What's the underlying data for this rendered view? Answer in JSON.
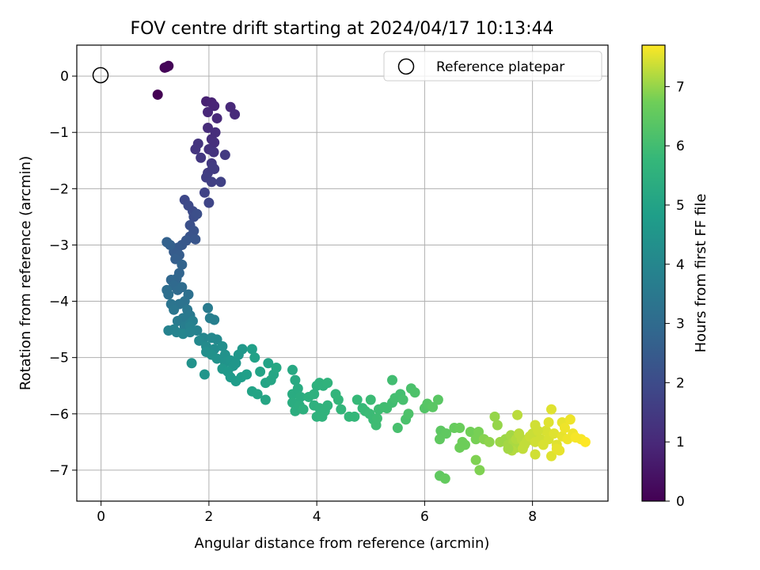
{
  "chart_data": {
    "type": "scatter",
    "title": "FOV centre drift starting at 2024/04/17 10:13:44",
    "xlabel": "Angular distance from reference (arcmin)",
    "ylabel": "Rotation from reference (arcmin)",
    "xlim": [
      -0.45,
      9.4
    ],
    "ylim": [
      -7.55,
      0.55
    ],
    "xticks": [
      0,
      2,
      4,
      6,
      8
    ],
    "yticks": [
      0,
      -1,
      -2,
      -3,
      -4,
      -5,
      -6,
      -7
    ],
    "xtick_labels": [
      "0",
      "2",
      "4",
      "6",
      "8"
    ],
    "ytick_labels": [
      "0",
      "−1",
      "−2",
      "−3",
      "−4",
      "−5",
      "−6",
      "−7"
    ],
    "grid": true,
    "legend": {
      "placement": "top-right",
      "entries": [
        "Reference platepar"
      ]
    },
    "reference_point": {
      "x": 0,
      "y": 0
    },
    "colorbar": {
      "label": "Hours from first FF file",
      "colormap": "viridis",
      "range": [
        0,
        7.7
      ],
      "ticks": [
        0,
        1,
        2,
        3,
        4,
        5,
        6,
        7
      ],
      "tick_labels": [
        "0",
        "1",
        "2",
        "3",
        "4",
        "5",
        "6",
        "7"
      ]
    },
    "points_note": "x, y in arcmin; h = hours from first FF file (colour)",
    "points": [
      [
        1.05,
        -0.33,
        0.0
      ],
      [
        1.18,
        0.15,
        0.05
      ],
      [
        1.25,
        0.18,
        0.08
      ],
      [
        1.21,
        0.16,
        0.1
      ],
      [
        1.95,
        -0.45,
        0.8
      ],
      [
        2.05,
        -0.47,
        0.85
      ],
      [
        2.1,
        -0.53,
        0.9
      ],
      [
        1.98,
        -0.64,
        0.95
      ],
      [
        2.15,
        -0.75,
        1.0
      ],
      [
        2.4,
        -0.55,
        1.0
      ],
      [
        2.48,
        -0.68,
        1.05
      ],
      [
        1.98,
        -0.92,
        1.1
      ],
      [
        2.05,
        -1.12,
        1.15
      ],
      [
        2.1,
        -1.18,
        1.2
      ],
      [
        2.0,
        -1.3,
        1.25
      ],
      [
        2.09,
        -1.35,
        1.3
      ],
      [
        1.8,
        -1.2,
        1.3
      ],
      [
        1.75,
        -1.3,
        1.35
      ],
      [
        1.85,
        -1.45,
        1.4
      ],
      [
        2.05,
        -1.55,
        1.45
      ],
      [
        2.1,
        -1.65,
        1.5
      ],
      [
        1.98,
        -1.72,
        1.55
      ],
      [
        1.95,
        -1.8,
        1.6
      ],
      [
        2.05,
        -1.88,
        1.65
      ],
      [
        2.22,
        -1.88,
        1.7
      ],
      [
        1.92,
        -2.07,
        1.75
      ],
      [
        2.0,
        -2.25,
        1.8
      ],
      [
        2.3,
        -1.4,
        1.5
      ],
      [
        2.12,
        -1.0,
        1.15
      ],
      [
        2.07,
        -1.62,
        1.55
      ],
      [
        1.55,
        -2.2,
        1.9
      ],
      [
        1.62,
        -2.3,
        1.95
      ],
      [
        1.7,
        -2.4,
        2.0
      ],
      [
        1.72,
        -2.5,
        2.05
      ],
      [
        1.78,
        -2.45,
        2.1
      ],
      [
        1.65,
        -2.65,
        2.15
      ],
      [
        1.72,
        -2.75,
        2.2
      ],
      [
        1.65,
        -2.85,
        2.25
      ],
      [
        1.75,
        -2.9,
        2.3
      ],
      [
        1.58,
        -2.92,
        2.35
      ],
      [
        1.5,
        -3.0,
        2.4
      ],
      [
        1.42,
        -3.05,
        2.45
      ],
      [
        1.35,
        -3.12,
        2.5
      ],
      [
        1.45,
        -3.18,
        2.55
      ],
      [
        1.38,
        -3.25,
        2.6
      ],
      [
        1.28,
        -3.0,
        2.65
      ],
      [
        1.22,
        -2.95,
        2.7
      ],
      [
        1.5,
        -3.35,
        2.75
      ],
      [
        1.45,
        -3.5,
        2.8
      ],
      [
        1.4,
        -3.6,
        2.85
      ],
      [
        1.3,
        -3.62,
        2.9
      ],
      [
        1.35,
        -3.72,
        2.95
      ],
      [
        1.42,
        -3.8,
        3.0
      ],
      [
        1.5,
        -3.75,
        3.05
      ],
      [
        1.22,
        -3.8,
        3.1
      ],
      [
        1.25,
        -3.88,
        3.15
      ],
      [
        1.62,
        -3.88,
        3.2
      ],
      [
        1.55,
        -4.0,
        3.25
      ],
      [
        1.45,
        -4.05,
        3.3
      ],
      [
        1.3,
        -4.05,
        3.35
      ],
      [
        1.35,
        -4.15,
        3.4
      ],
      [
        1.6,
        -4.15,
        3.45
      ],
      [
        1.65,
        -4.25,
        3.5
      ],
      [
        1.52,
        -4.3,
        3.55
      ],
      [
        1.42,
        -4.35,
        3.6
      ],
      [
        1.55,
        -4.45,
        3.65
      ],
      [
        1.65,
        -4.4,
        3.7
      ],
      [
        1.7,
        -4.35,
        3.75
      ],
      [
        1.35,
        -4.5,
        3.8
      ],
      [
        1.25,
        -4.52,
        3.85
      ],
      [
        1.4,
        -4.55,
        3.9
      ],
      [
        1.52,
        -4.58,
        3.95
      ],
      [
        1.98,
        -4.12,
        3.6
      ],
      [
        2.02,
        -4.3,
        3.7
      ],
      [
        2.1,
        -4.33,
        3.75
      ],
      [
        1.65,
        -4.45,
        3.8
      ],
      [
        1.78,
        -4.52,
        3.85
      ],
      [
        1.65,
        -4.55,
        3.9
      ],
      [
        1.9,
        -4.65,
        4.0
      ],
      [
        2.05,
        -4.65,
        4.05
      ],
      [
        2.15,
        -4.68,
        4.1
      ],
      [
        1.82,
        -4.7,
        4.1
      ],
      [
        1.95,
        -4.8,
        4.15
      ],
      [
        2.1,
        -4.85,
        4.2
      ],
      [
        2.25,
        -4.8,
        4.25
      ],
      [
        1.95,
        -4.9,
        4.3
      ],
      [
        2.05,
        -4.95,
        4.35
      ],
      [
        2.3,
        -4.95,
        4.4
      ],
      [
        2.15,
        -5.02,
        4.4
      ],
      [
        2.3,
        -5.08,
        4.45
      ],
      [
        2.4,
        -5.05,
        4.5
      ],
      [
        2.45,
        -5.15,
        4.55
      ],
      [
        2.25,
        -5.2,
        4.6
      ],
      [
        2.35,
        -5.25,
        4.65
      ],
      [
        2.4,
        -5.35,
        4.7
      ],
      [
        2.5,
        -5.42,
        4.75
      ],
      [
        2.6,
        -5.35,
        4.8
      ],
      [
        2.55,
        -4.95,
        4.55
      ],
      [
        2.62,
        -4.85,
        4.6
      ],
      [
        2.7,
        -5.3,
        4.85
      ],
      [
        1.68,
        -5.1,
        4.4
      ],
      [
        1.92,
        -5.3,
        4.5
      ],
      [
        2.5,
        -5.1,
        4.55
      ],
      [
        2.8,
        -5.6,
        5.0
      ],
      [
        2.9,
        -5.65,
        5.05
      ],
      [
        3.05,
        -5.75,
        5.1
      ],
      [
        2.95,
        -5.25,
        5.0
      ],
      [
        3.1,
        -5.1,
        5.0
      ],
      [
        2.8,
        -4.85,
        4.9
      ],
      [
        2.85,
        -5.0,
        4.95
      ],
      [
        3.05,
        -5.45,
        5.05
      ],
      [
        3.15,
        -5.4,
        5.1
      ],
      [
        3.2,
        -5.3,
        5.1
      ],
      [
        3.25,
        -5.18,
        5.15
      ],
      [
        3.55,
        -5.22,
        5.2
      ],
      [
        3.6,
        -5.4,
        5.25
      ],
      [
        3.55,
        -5.65,
        5.3
      ],
      [
        3.65,
        -5.55,
        5.3
      ],
      [
        3.7,
        -5.7,
        5.35
      ],
      [
        3.55,
        -5.8,
        5.35
      ],
      [
        3.6,
        -5.95,
        5.4
      ],
      [
        3.68,
        -5.85,
        5.4
      ],
      [
        3.75,
        -5.92,
        5.45
      ],
      [
        3.85,
        -5.7,
        5.45
      ],
      [
        3.95,
        -5.65,
        5.5
      ],
      [
        4.0,
        -5.5,
        5.5
      ],
      [
        4.05,
        -5.45,
        5.55
      ],
      [
        4.12,
        -5.5,
        5.55
      ],
      [
        4.2,
        -5.45,
        5.6
      ],
      [
        3.95,
        -5.85,
        5.5
      ],
      [
        4.05,
        -5.9,
        5.55
      ],
      [
        4.15,
        -5.95,
        5.6
      ],
      [
        4.0,
        -6.05,
        5.55
      ],
      [
        4.1,
        -6.05,
        5.6
      ],
      [
        4.2,
        -5.85,
        5.6
      ],
      [
        4.35,
        -5.65,
        5.65
      ],
      [
        4.4,
        -5.75,
        5.7
      ],
      [
        4.45,
        -5.92,
        5.7
      ],
      [
        4.6,
        -6.05,
        5.75
      ],
      [
        4.7,
        -6.05,
        5.75
      ],
      [
        4.75,
        -5.75,
        5.8
      ],
      [
        4.85,
        -5.9,
        5.8
      ],
      [
        4.9,
        -5.95,
        5.85
      ],
      [
        5.0,
        -5.75,
        5.9
      ],
      [
        5.05,
        -6.1,
        5.9
      ],
      [
        5.1,
        -6.2,
        5.95
      ],
      [
        5.15,
        -5.92,
        5.95
      ],
      [
        5.25,
        -5.88,
        6.0
      ],
      [
        5.4,
        -5.8,
        6.0
      ],
      [
        5.45,
        -5.72,
        6.05
      ],
      [
        5.4,
        -5.4,
        6.0
      ],
      [
        5.55,
        -5.65,
        6.05
      ],
      [
        5.6,
        -5.75,
        6.1
      ],
      [
        5.5,
        -6.25,
        6.1
      ],
      [
        5.65,
        -6.1,
        6.15
      ],
      [
        5.75,
        -5.55,
        6.15
      ],
      [
        5.82,
        -5.62,
        6.2
      ],
      [
        5.7,
        -6.0,
        6.2
      ],
      [
        4.98,
        -6.0,
        5.9
      ],
      [
        5.12,
        -6.08,
        5.95
      ],
      [
        5.3,
        -5.9,
        6.0
      ],
      [
        6.0,
        -5.9,
        6.3
      ],
      [
        6.05,
        -5.82,
        6.35
      ],
      [
        6.15,
        -5.88,
        6.4
      ],
      [
        6.25,
        -5.75,
        6.4
      ],
      [
        6.3,
        -6.3,
        6.45
      ],
      [
        6.4,
        -6.35,
        6.5
      ],
      [
        6.28,
        -6.45,
        6.5
      ],
      [
        6.28,
        -7.1,
        6.5
      ],
      [
        6.38,
        -7.15,
        6.55
      ],
      [
        6.55,
        -6.25,
        6.6
      ],
      [
        6.65,
        -6.25,
        6.65
      ],
      [
        6.7,
        -6.5,
        6.7
      ],
      [
        6.75,
        -6.55,
        6.7
      ],
      [
        6.65,
        -6.6,
        6.7
      ],
      [
        6.85,
        -6.32,
        6.75
      ],
      [
        6.95,
        -6.45,
        6.8
      ],
      [
        7.0,
        -6.32,
        6.8
      ],
      [
        6.95,
        -6.82,
        6.85
      ],
      [
        7.02,
        -7.0,
        6.85
      ],
      [
        7.1,
        -6.45,
        6.9
      ],
      [
        7.2,
        -6.5,
        6.95
      ],
      [
        7.3,
        -6.05,
        7.0
      ],
      [
        7.35,
        -6.2,
        7.0
      ],
      [
        7.4,
        -6.5,
        7.05
      ],
      [
        7.5,
        -6.45,
        7.05
      ],
      [
        7.55,
        -6.55,
        7.1
      ],
      [
        7.6,
        -6.38,
        7.1
      ],
      [
        7.65,
        -6.5,
        7.15
      ],
      [
        7.7,
        -6.6,
        7.15
      ],
      [
        7.62,
        -6.65,
        7.2
      ],
      [
        7.7,
        -6.45,
        7.2
      ],
      [
        7.75,
        -6.35,
        7.25
      ],
      [
        7.8,
        -6.45,
        7.25
      ],
      [
        7.72,
        -6.02,
        7.25
      ],
      [
        7.85,
        -6.55,
        7.3
      ],
      [
        7.9,
        -6.48,
        7.3
      ],
      [
        7.95,
        -6.4,
        7.35
      ],
      [
        8.0,
        -6.35,
        7.35
      ],
      [
        8.05,
        -6.5,
        7.4
      ],
      [
        8.05,
        -6.72,
        7.4
      ],
      [
        8.15,
        -6.45,
        7.4
      ],
      [
        8.2,
        -6.55,
        7.45
      ],
      [
        8.25,
        -6.3,
        7.45
      ],
      [
        8.3,
        -6.45,
        7.45
      ],
      [
        8.35,
        -6.75,
        7.5
      ],
      [
        8.4,
        -6.35,
        7.5
      ],
      [
        8.35,
        -5.92,
        7.5
      ],
      [
        8.45,
        -6.55,
        7.5
      ],
      [
        8.5,
        -6.65,
        7.55
      ],
      [
        8.55,
        -6.4,
        7.55
      ],
      [
        8.55,
        -6.15,
        7.55
      ],
      [
        8.6,
        -6.25,
        7.6
      ],
      [
        8.65,
        -6.45,
        7.6
      ],
      [
        8.7,
        -6.1,
        7.6
      ],
      [
        8.75,
        -6.35,
        7.6
      ],
      [
        8.8,
        -6.42,
        7.65
      ],
      [
        8.9,
        -6.45,
        7.65
      ],
      [
        8.98,
        -6.5,
        7.7
      ],
      [
        8.05,
        -6.2,
        7.4
      ],
      [
        8.1,
        -6.3,
        7.4
      ],
      [
        7.55,
        -6.62,
        7.1
      ],
      [
        7.82,
        -6.62,
        7.3
      ],
      [
        8.45,
        -6.62,
        7.55
      ],
      [
        8.3,
        -6.15,
        7.5
      ]
    ]
  }
}
